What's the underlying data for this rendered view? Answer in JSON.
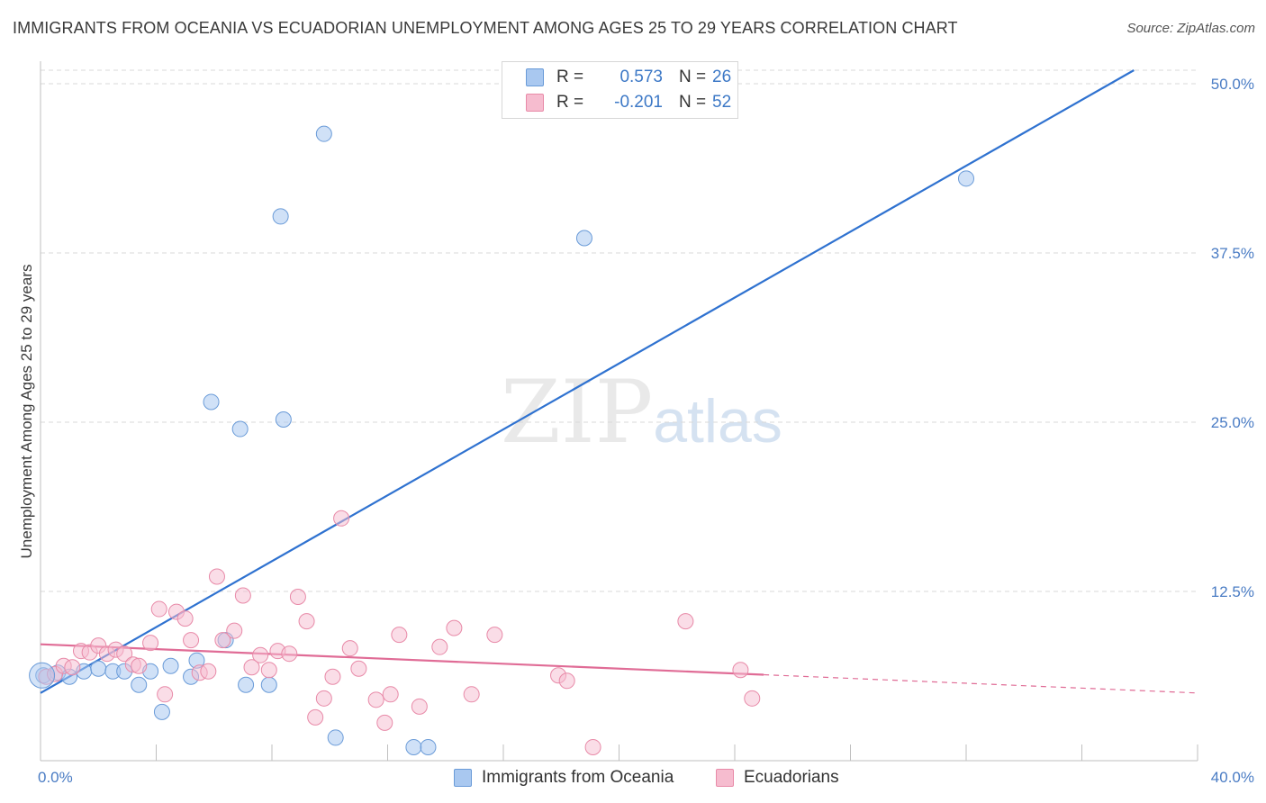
{
  "title": "IMMIGRANTS FROM OCEANIA VS ECUADORIAN UNEMPLOYMENT AMONG AGES 25 TO 29 YEARS CORRELATION CHART",
  "source": "Source: ZipAtlas.com",
  "watermark": {
    "zip": "ZIP",
    "atlas": "atlas"
  },
  "legend": {
    "rows": [
      {
        "r_label": "R =",
        "r_value": "0.573",
        "n_label": "N =",
        "n_value": "26"
      },
      {
        "r_label": "R =",
        "r_value": "-0.201",
        "n_label": "N =",
        "n_value": "52"
      }
    ]
  },
  "colors": {
    "blue_fill": "#a9c8f0",
    "blue_stroke": "#6a9bd8",
    "blue_line": "#2f72d0",
    "pink_fill": "#f6bccf",
    "pink_stroke": "#e88aa8",
    "pink_line": "#e06c96",
    "grid": "#d9d9d9",
    "axis_text": "#4a7cc4"
  },
  "chart_data": {
    "type": "scatter",
    "title": "IMMIGRANTS FROM OCEANIA VS ECUADORIAN UNEMPLOYMENT AMONG AGES 25 TO 29 YEARS CORRELATION CHART",
    "xlabel": "",
    "ylabel": "Unemployment Among Ages 25 to 29 years",
    "xlim": [
      0,
      40
    ],
    "ylim": [
      0,
      51
    ],
    "x_tick_labels": [
      "0.0%",
      "40.0%"
    ],
    "y_ticks": [
      12.5,
      25.0,
      37.5,
      50.0
    ],
    "y_tick_labels": [
      "12.5%",
      "25.0%",
      "37.5%",
      "50.0%"
    ],
    "series": [
      {
        "name": "Immigrants from Oceania",
        "color": "blue",
        "R": 0.573,
        "N": 26,
        "points": [
          [
            0.1,
            6.3
          ],
          [
            0.6,
            6.5
          ],
          [
            1.0,
            6.2
          ],
          [
            1.5,
            6.6
          ],
          [
            2.0,
            6.8
          ],
          [
            2.5,
            6.6
          ],
          [
            2.9,
            6.6
          ],
          [
            3.4,
            5.6
          ],
          [
            3.8,
            6.6
          ],
          [
            4.2,
            3.6
          ],
          [
            4.5,
            7.0
          ],
          [
            5.2,
            6.2
          ],
          [
            5.4,
            7.4
          ],
          [
            5.9,
            26.5
          ],
          [
            6.4,
            8.9
          ],
          [
            6.9,
            24.5
          ],
          [
            7.1,
            5.6
          ],
          [
            7.9,
            5.6
          ],
          [
            8.3,
            40.2
          ],
          [
            8.4,
            25.2
          ],
          [
            9.8,
            46.3
          ],
          [
            10.2,
            1.7
          ],
          [
            12.9,
            1.0
          ],
          [
            13.4,
            1.0
          ],
          [
            18.8,
            38.6
          ],
          [
            32.0,
            43.0
          ]
        ],
        "trend": {
          "x": [
            0,
            37.8
          ],
          "y": [
            5.0,
            51.0
          ]
        }
      },
      {
        "name": "Ecuadorians",
        "color": "pink",
        "R": -0.201,
        "N": 52,
        "points": [
          [
            0.2,
            6.2
          ],
          [
            0.5,
            6.4
          ],
          [
            0.8,
            7.0
          ],
          [
            1.1,
            6.9
          ],
          [
            1.4,
            8.1
          ],
          [
            1.7,
            8.0
          ],
          [
            2.0,
            8.5
          ],
          [
            2.3,
            7.9
          ],
          [
            2.6,
            8.2
          ],
          [
            2.9,
            7.9
          ],
          [
            3.2,
            7.1
          ],
          [
            3.4,
            7.0
          ],
          [
            3.8,
            8.7
          ],
          [
            4.1,
            11.2
          ],
          [
            4.3,
            4.9
          ],
          [
            4.7,
            11.0
          ],
          [
            5.0,
            10.5
          ],
          [
            5.2,
            8.9
          ],
          [
            5.5,
            6.5
          ],
          [
            5.8,
            6.6
          ],
          [
            6.1,
            13.6
          ],
          [
            6.3,
            8.9
          ],
          [
            6.7,
            9.6
          ],
          [
            7.0,
            12.2
          ],
          [
            7.3,
            6.9
          ],
          [
            7.6,
            7.8
          ],
          [
            7.9,
            6.7
          ],
          [
            8.2,
            8.1
          ],
          [
            8.6,
            7.9
          ],
          [
            8.9,
            12.1
          ],
          [
            9.2,
            10.3
          ],
          [
            9.5,
            3.2
          ],
          [
            9.8,
            4.6
          ],
          [
            10.1,
            6.2
          ],
          [
            10.4,
            17.9
          ],
          [
            10.7,
            8.3
          ],
          [
            11.0,
            6.8
          ],
          [
            11.6,
            4.5
          ],
          [
            11.9,
            2.8
          ],
          [
            12.1,
            4.9
          ],
          [
            12.4,
            9.3
          ],
          [
            13.1,
            4.0
          ],
          [
            13.8,
            8.4
          ],
          [
            14.3,
            9.8
          ],
          [
            14.9,
            4.9
          ],
          [
            15.7,
            9.3
          ],
          [
            17.9,
            6.3
          ],
          [
            18.2,
            5.9
          ],
          [
            19.1,
            1.0
          ],
          [
            22.3,
            10.3
          ],
          [
            24.2,
            6.7
          ],
          [
            24.6,
            4.6
          ]
        ],
        "trend": {
          "x": [
            0,
            40
          ],
          "y": [
            8.6,
            5.0
          ],
          "solid_until_x": 25.0
        }
      }
    ]
  },
  "bottom_legend": [
    {
      "label": "Immigrants from Oceania"
    },
    {
      "label": "Ecuadorians"
    }
  ]
}
